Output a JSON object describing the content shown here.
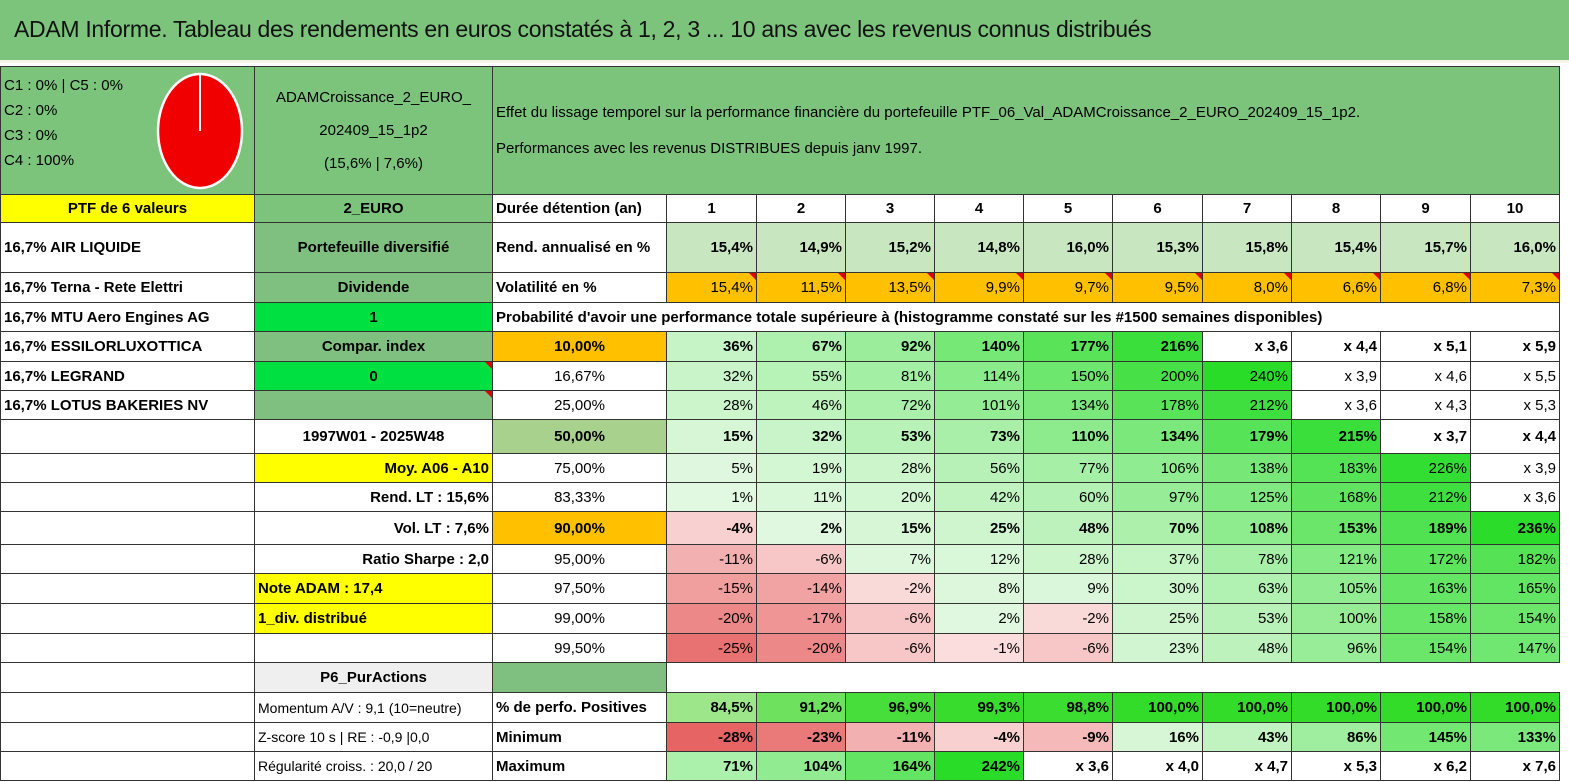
{
  "title": "ADAM Informe. Tableau des rendements en euros constatés à 1, 2, 3 ... 10 ans avec les revenus connus distribués",
  "allocation": [
    "C1 : 0% | C5 : 0%",
    "C2 : 0%",
    "C3 : 0%",
    "C4 : 100%"
  ],
  "pie": {
    "colors": {
      "fill": "#f00000",
      "border": "#ffffff"
    },
    "share_c4": 1.0
  },
  "portfolio": {
    "name_line1": "ADAMCroissance_2_EURO_",
    "name_line2": "202409_15_1p2",
    "stats": "(15,6% | 7,6%)"
  },
  "description": {
    "line1": "Effet du lissage temporel sur la performance financière du portefeuille PTF_06_Val_ADAMCroissance_2_EURO_202409_15_1p2.",
    "line2": "Performances avec les revenus DISTRIBUES depuis janv 1997."
  },
  "ptf_header": "PTF de 6 valeurs",
  "currency_code": "2_EURO",
  "duration_label": "Durée détention (an)",
  "years": [
    "1",
    "2",
    "3",
    "4",
    "5",
    "6",
    "7",
    "8",
    "9",
    "10"
  ],
  "holdings": [
    "16,7% AIR LIQUIDE",
    "16,7% Terna - Rete Elettri",
    "16,7% MTU Aero Engines AG",
    "16,7% ESSILORLUXOTTICA",
    "16,7% LEGRAND",
    "16,7% LOTUS BAKERIES NV"
  ],
  "side_b": [
    "Portefeuille diversifié",
    "Dividende",
    "1",
    "Compar. index",
    "0",
    ""
  ],
  "rend": {
    "label": "Rend. annualisé en %",
    "values": [
      "15,4%",
      "14,9%",
      "15,2%",
      "14,8%",
      "16,0%",
      "15,3%",
      "15,8%",
      "15,4%",
      "15,7%",
      "16,0%"
    ]
  },
  "vol": {
    "label": "Volatilité en %",
    "values": [
      "15,4%",
      "11,5%",
      "13,5%",
      "9,9%",
      "9,7%",
      "9,5%",
      "8,0%",
      "6,6%",
      "6,8%",
      "7,3%"
    ]
  },
  "prob_header": "Probabilité d'avoir une performance totale supérieure à (histogramme constaté sur les #1500 semaines disponibles)",
  "prob_rows": [
    {
      "label": "10,00%",
      "b_text": "",
      "values": [
        "36%",
        "67%",
        "92%",
        "140%",
        "177%",
        "216%",
        "x 3,6",
        "x 4,4",
        "x 5,1",
        "x 5,9"
      ]
    },
    {
      "label": "16,67%",
      "b_text": "",
      "values": [
        "32%",
        "55%",
        "81%",
        "114%",
        "150%",
        "200%",
        "240%",
        "x 3,9",
        "x 4,6",
        "x 5,5"
      ]
    },
    {
      "label": "25,00%",
      "b_text": "",
      "values": [
        "28%",
        "46%",
        "72%",
        "101%",
        "134%",
        "178%",
        "212%",
        "x 3,6",
        "x 4,3",
        "x 5,3"
      ]
    },
    {
      "label": "50,00%",
      "b_text": "1997W01 - 2025W48",
      "values": [
        "15%",
        "32%",
        "53%",
        "73%",
        "110%",
        "134%",
        "179%",
        "215%",
        "x 3,7",
        "x 4,4"
      ]
    },
    {
      "label": "75,00%",
      "b_text": "Moy. A06 - A10",
      "values": [
        "5%",
        "19%",
        "28%",
        "56%",
        "77%",
        "106%",
        "138%",
        "183%",
        "226%",
        "x 3,9"
      ]
    },
    {
      "label": "83,33%",
      "b_text": "Rend. LT : 15,6%",
      "values": [
        "1%",
        "11%",
        "20%",
        "42%",
        "60%",
        "97%",
        "125%",
        "168%",
        "212%",
        "x 3,6"
      ]
    },
    {
      "label": "90,00%",
      "b_text": "Vol. LT : 7,6%",
      "values": [
        "-4%",
        "2%",
        "15%",
        "25%",
        "48%",
        "70%",
        "108%",
        "153%",
        "189%",
        "236%"
      ]
    },
    {
      "label": "95,00%",
      "b_text": "Ratio Sharpe : 2,0",
      "values": [
        "-11%",
        "-6%",
        "7%",
        "12%",
        "28%",
        "37%",
        "78%",
        "121%",
        "172%",
        "182%"
      ]
    },
    {
      "label": "97,50%",
      "b_text": "Note ADAM : 17,4",
      "values": [
        "-15%",
        "-14%",
        "-2%",
        "8%",
        "9%",
        "30%",
        "63%",
        "105%",
        "163%",
        "165%"
      ]
    },
    {
      "label": "99,00%",
      "b_text": "1_div. distribué",
      "values": [
        "-20%",
        "-17%",
        "-6%",
        "2%",
        "-2%",
        "25%",
        "53%",
        "100%",
        "158%",
        "154%"
      ]
    },
    {
      "label": "99,50%",
      "b_text": "",
      "values": [
        "-25%",
        "-20%",
        "-6%",
        "-1%",
        "-6%",
        "23%",
        "48%",
        "96%",
        "154%",
        "147%"
      ]
    }
  ],
  "purchase_label": "P6_PurActions",
  "bottom": [
    {
      "b_text": "Momentum A/V : 9,1 (10=neutre)",
      "label": "% de perfo. Positives",
      "values": [
        "84,5%",
        "91,2%",
        "96,9%",
        "99,3%",
        "98,8%",
        "100,0%",
        "100,0%",
        "100,0%",
        "100,0%",
        "100,0%"
      ]
    },
    {
      "b_text": "Z-score 10 s | RE : -0,9 |0,0",
      "label": "Minimum",
      "values": [
        "-28%",
        "-23%",
        "-11%",
        "-4%",
        "-9%",
        "16%",
        "43%",
        "86%",
        "145%",
        "133%"
      ]
    },
    {
      "b_text": "Régularité croiss. : 20,0 / 20",
      "label": "Maximum",
      "values": [
        "71%",
        "104%",
        "164%",
        "242%",
        "x 3,6",
        "x 4,0",
        "x 4,7",
        "x 5,3",
        "x 6,2",
        "x 7,6"
      ]
    }
  ],
  "colors": {
    "title_bg": "#7cc47c",
    "header_yellow": "#ffff00",
    "orange": "#ffc000",
    "bright_green": "#00e040",
    "dark_green": "#7fbf7f",
    "red_text": "#d10000"
  }
}
